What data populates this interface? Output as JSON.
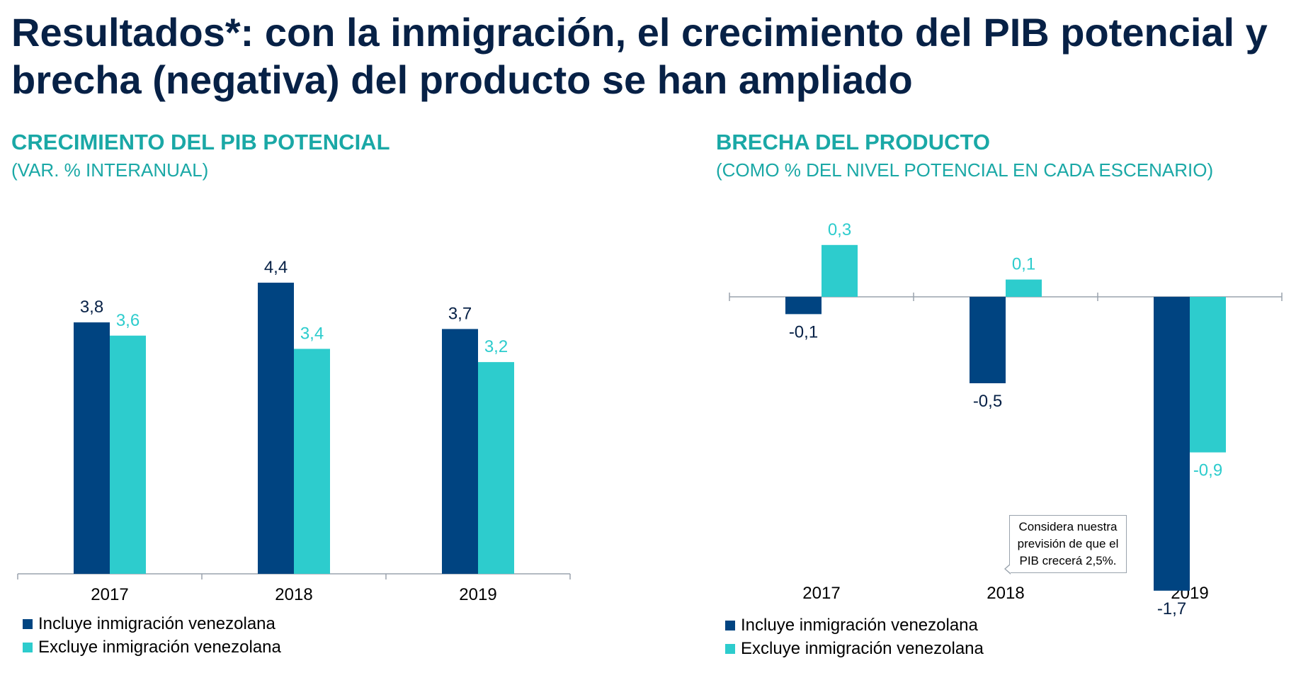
{
  "title": "Resultados*: con la inmigración, el crecimiento del PIB potencial y brecha (negativa) del producto se han ampliado",
  "colors": {
    "title": "#072146",
    "accent_text": "#1aa8a6",
    "incluye": "#004481",
    "excluye": "#2dcccd",
    "axis": "#9aa3ad"
  },
  "legend": {
    "incluye": "Incluye inmigración venezolana",
    "excluye": "Excluye inmigración venezolana"
  },
  "left_panel": {
    "title": "CRECIMIENTO DEL PIB POTENCIAL",
    "subtitle": "(VAR. % INTERANUAL)"
  },
  "right_panel": {
    "title": "BRECHA DEL PRODUCTO",
    "subtitle": "(COMO % DEL NIVEL POTENCIAL EN CADA ESCENARIO)",
    "callout": "Considera nuestra previsión de que el PIB crecerá 2,5%."
  },
  "chart_data": [
    {
      "type": "bar",
      "categories": [
        "2017",
        "2018",
        "2019"
      ],
      "series": [
        {
          "name": "Incluye inmigración venezolana",
          "values": [
            3.8,
            4.4,
            3.7
          ],
          "labels": [
            "3,8",
            "4,4",
            "3,7"
          ]
        },
        {
          "name": "Excluye inmigración venezolana",
          "values": [
            3.6,
            3.4,
            3.2
          ],
          "labels": [
            "3,6",
            "3,4",
            "3,2"
          ]
        }
      ],
      "ylim": [
        0,
        4.4
      ],
      "grid": false,
      "legend_position": "bottom-left"
    },
    {
      "type": "bar",
      "categories": [
        "2017",
        "2018",
        "2019"
      ],
      "series": [
        {
          "name": "Incluye inmigración venezolana",
          "values": [
            -0.1,
            -0.5,
            -1.7
          ],
          "labels": [
            "-0,1",
            "-0,5",
            "-1,7"
          ]
        },
        {
          "name": "Excluye inmigración venezolana",
          "values": [
            0.3,
            0.1,
            -0.9
          ],
          "labels": [
            "0,3",
            "0,1",
            "-0,9"
          ]
        }
      ],
      "ylim": [
        -1.7,
        0.3
      ],
      "grid": false,
      "legend_position": "bottom-left"
    }
  ]
}
